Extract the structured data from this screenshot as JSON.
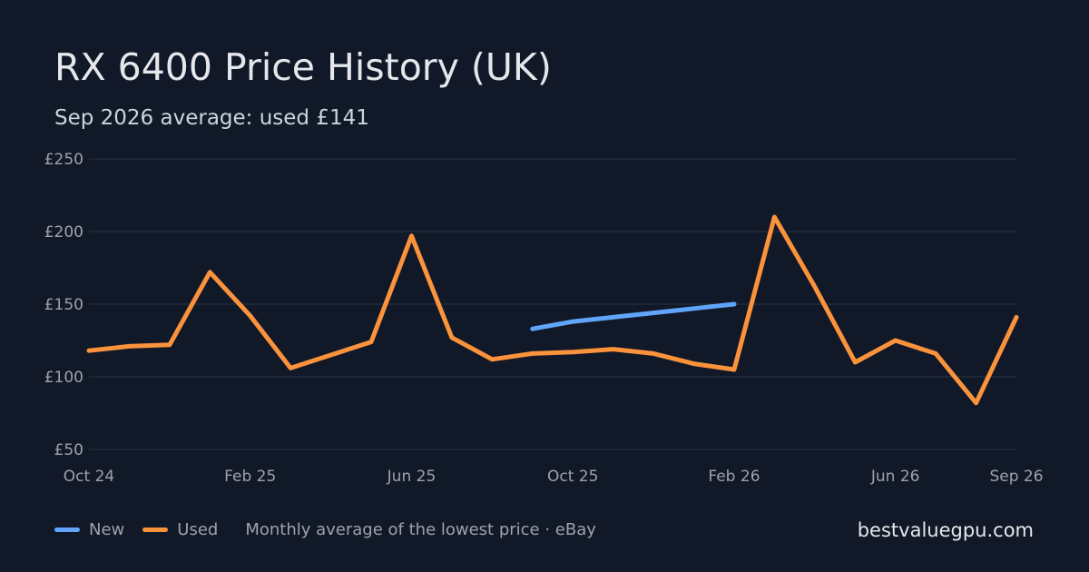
{
  "header": {
    "title": "RX 6400 Price History (UK)",
    "subtitle": "Sep 2026 average: used £141"
  },
  "footer": {
    "legend": [
      {
        "label": "New",
        "color": "#60a5fa"
      },
      {
        "label": "Used",
        "color": "#fb923c"
      }
    ],
    "note": "Monthly average of the lowest price · eBay",
    "brand": "bestvaluegpu.com"
  },
  "chart_data": {
    "type": "line",
    "title": "RX 6400 Price History (UK)",
    "subtitle": "Sep 2026 average: used £141",
    "x": [
      "2024-10",
      "2024-11",
      "2024-12",
      "2025-01",
      "2025-02",
      "2025-03",
      "2025-04",
      "2025-05",
      "2025-06",
      "2025-07",
      "2025-08",
      "2025-09",
      "2025-10",
      "2025-11",
      "2025-12",
      "2026-01",
      "2026-02",
      "2026-03",
      "2026-04",
      "2026-05",
      "2026-06",
      "2026-07",
      "2026-08",
      "2026-09"
    ],
    "x_ticks": [
      {
        "value": "2024-10",
        "label": "Oct 24"
      },
      {
        "value": "2025-02",
        "label": "Feb 25"
      },
      {
        "value": "2025-06",
        "label": "Jun 25"
      },
      {
        "value": "2025-10",
        "label": "Oct 25"
      },
      {
        "value": "2026-02",
        "label": "Feb 26"
      },
      {
        "value": "2026-06",
        "label": "Jun 26"
      },
      {
        "value": "2026-09",
        "label": "Sep 26"
      }
    ],
    "y_ticks": [
      {
        "value": 50,
        "label": "£50"
      },
      {
        "value": 100,
        "label": "£100"
      },
      {
        "value": 150,
        "label": "£150"
      },
      {
        "value": 200,
        "label": "£200"
      },
      {
        "value": 250,
        "label": "£250"
      }
    ],
    "ylim": [
      50,
      250
    ],
    "grid": true,
    "legend_position": "bottom-left",
    "series": [
      {
        "name": "New",
        "color": "#60a5fa",
        "values": [
          null,
          null,
          null,
          null,
          null,
          null,
          null,
          null,
          null,
          null,
          null,
          133,
          138,
          141,
          144,
          147,
          150,
          null,
          null,
          null,
          null,
          null,
          null,
          null
        ]
      },
      {
        "name": "Used",
        "color": "#fb923c",
        "values": [
          118,
          121,
          122,
          172,
          142,
          106,
          115,
          124,
          197,
          127,
          112,
          116,
          117,
          119,
          116,
          109,
          105,
          210,
          162,
          110,
          125,
          116,
          82,
          141
        ]
      }
    ]
  }
}
